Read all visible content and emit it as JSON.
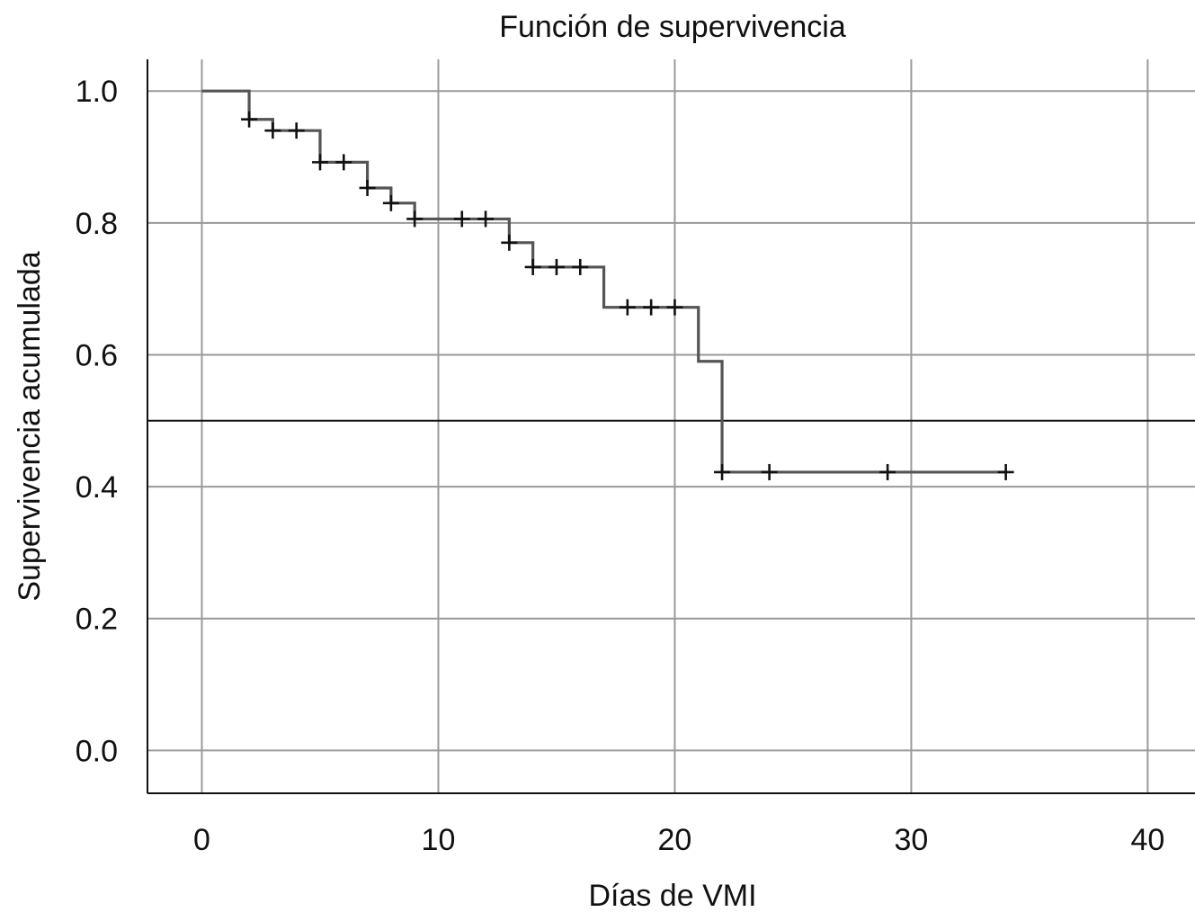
{
  "chart_data": {
    "type": "line",
    "subtype": "kaplan-meier-step",
    "title": "Función de supervivencia",
    "xlabel": "Días de VMI",
    "ylabel": "Supervivencia acumulada",
    "xlim": [
      -2.3,
      42
    ],
    "ylim": [
      -0.065,
      1.048
    ],
    "grid": true,
    "x_ticks": [
      0,
      10,
      20,
      30,
      40
    ],
    "x_tick_labels": [
      "0",
      "10",
      "20",
      "30",
      "40"
    ],
    "y_ticks": [
      0.0,
      0.2,
      0.4,
      0.6,
      0.8,
      1.0
    ],
    "y_tick_labels": [
      "0.0",
      "0.2",
      "0.4",
      "0.6",
      "0.8",
      "1.0"
    ],
    "reference_line": {
      "y": 0.5
    },
    "series": [
      {
        "name": "Supervivencia",
        "color": "#555555",
        "step_points": [
          [
            0,
            1.0
          ],
          [
            2,
            0.957
          ],
          [
            3,
            0.94
          ],
          [
            5,
            0.892
          ],
          [
            7,
            0.853
          ],
          [
            8,
            0.83
          ],
          [
            9,
            0.806
          ],
          [
            13,
            0.77
          ],
          [
            14,
            0.733
          ],
          [
            17,
            0.672
          ],
          [
            21,
            0.59
          ],
          [
            22,
            0.422
          ],
          [
            34,
            0.42
          ]
        ],
        "censored": [
          [
            2,
            0.957
          ],
          [
            3,
            0.94
          ],
          [
            4,
            0.94
          ],
          [
            5,
            0.892
          ],
          [
            6,
            0.892
          ],
          [
            7,
            0.853
          ],
          [
            8,
            0.83
          ],
          [
            9,
            0.806
          ],
          [
            11,
            0.806
          ],
          [
            12,
            0.806
          ],
          [
            13,
            0.77
          ],
          [
            14,
            0.733
          ],
          [
            15,
            0.733
          ],
          [
            16,
            0.733
          ],
          [
            18,
            0.672
          ],
          [
            19,
            0.672
          ],
          [
            20,
            0.672
          ],
          [
            22,
            0.422
          ],
          [
            24,
            0.422
          ],
          [
            29,
            0.422
          ],
          [
            34,
            0.422
          ]
        ]
      }
    ]
  },
  "colors": {
    "grid": "#9a9a9a",
    "axis": "#111111",
    "step": "#555555",
    "censor": "#111111",
    "reference": "#111111"
  }
}
